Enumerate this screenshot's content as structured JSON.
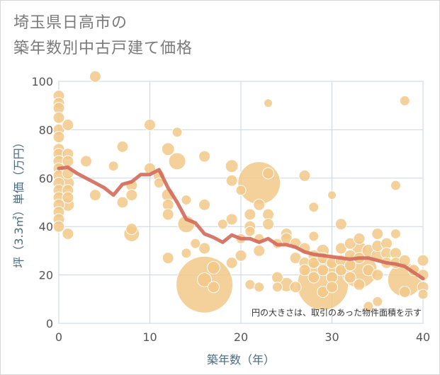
{
  "chart_data": {
    "type": "scatter",
    "title_lines": [
      "埼玉県日高市の",
      "築年数別中古戸建て価格"
    ],
    "xlabel": "築年数（年）",
    "ylabel": "坪（3.3㎡）単価（万円）",
    "xlim": [
      0,
      40
    ],
    "ylim": [
      0,
      100
    ],
    "x_ticks": [
      "0",
      "10",
      "20",
      "30",
      "40"
    ],
    "y_ticks": [
      "0",
      "20",
      "40",
      "60",
      "80",
      "100"
    ],
    "grid": true,
    "note": "円の大きさは、取引のあった物件面積を示す",
    "colors": {
      "bubble": "#f2c98a",
      "bubble_stroke": "#ffffff",
      "trend": "#d2695a",
      "grid": "#c9d5e0",
      "plot_bg": "#ffffff"
    },
    "series": [
      {
        "kind": "bubbles",
        "points": [
          {
            "x": 0,
            "y": 94,
            "s": 8
          },
          {
            "x": 0,
            "y": 91,
            "s": 8
          },
          {
            "x": 0,
            "y": 89,
            "s": 8
          },
          {
            "x": 0,
            "y": 85,
            "s": 8
          },
          {
            "x": 0,
            "y": 80,
            "s": 8
          },
          {
            "x": 0,
            "y": 77,
            "s": 8
          },
          {
            "x": 0,
            "y": 72,
            "s": 8
          },
          {
            "x": 0,
            "y": 70,
            "s": 8
          },
          {
            "x": 0,
            "y": 67,
            "s": 8
          },
          {
            "x": 0,
            "y": 64,
            "s": 8
          },
          {
            "x": 0,
            "y": 61,
            "s": 8
          },
          {
            "x": 0,
            "y": 58,
            "s": 8
          },
          {
            "x": 0,
            "y": 55,
            "s": 8
          },
          {
            "x": 0,
            "y": 52,
            "s": 8
          },
          {
            "x": 0,
            "y": 49,
            "s": 8
          },
          {
            "x": 0,
            "y": 46,
            "s": 8
          },
          {
            "x": 0,
            "y": 43,
            "s": 8
          },
          {
            "x": 0,
            "y": 40,
            "s": 8
          },
          {
            "x": 1,
            "y": 82,
            "s": 8
          },
          {
            "x": 1,
            "y": 70,
            "s": 8
          },
          {
            "x": 1,
            "y": 67,
            "s": 8
          },
          {
            "x": 1,
            "y": 62,
            "s": 8
          },
          {
            "x": 1,
            "y": 58,
            "s": 9
          },
          {
            "x": 1,
            "y": 55,
            "s": 8
          },
          {
            "x": 1,
            "y": 52,
            "s": 8
          },
          {
            "x": 1,
            "y": 49,
            "s": 9
          },
          {
            "x": 1,
            "y": 37,
            "s": 8
          },
          {
            "x": 3,
            "y": 67,
            "s": 8
          },
          {
            "x": 4,
            "y": 102,
            "s": 8
          },
          {
            "x": 4,
            "y": 53,
            "s": 8
          },
          {
            "x": 6,
            "y": 65,
            "s": 7
          },
          {
            "x": 7,
            "y": 73,
            "s": 8
          },
          {
            "x": 7,
            "y": 50,
            "s": 8
          },
          {
            "x": 8,
            "y": 57,
            "s": 8
          },
          {
            "x": 8,
            "y": 53,
            "s": 8
          },
          {
            "x": 8,
            "y": 39,
            "s": 8
          },
          {
            "x": 8,
            "y": 37,
            "s": 11
          },
          {
            "x": 10,
            "y": 82,
            "s": 8
          },
          {
            "x": 10,
            "y": 64,
            "s": 8
          },
          {
            "x": 11,
            "y": 61,
            "s": 8
          },
          {
            "x": 11,
            "y": 58,
            "s": 7
          },
          {
            "x": 12,
            "y": 72,
            "s": 9
          },
          {
            "x": 12,
            "y": 53,
            "s": 9
          },
          {
            "x": 12,
            "y": 49,
            "s": 8
          },
          {
            "x": 12,
            "y": 45,
            "s": 8
          },
          {
            "x": 12,
            "y": 27,
            "s": 8
          },
          {
            "x": 13,
            "y": 79,
            "s": 7
          },
          {
            "x": 13,
            "y": 67,
            "s": 12
          },
          {
            "x": 14,
            "y": 51,
            "s": 7
          },
          {
            "x": 14,
            "y": 41,
            "s": 12
          },
          {
            "x": 14,
            "y": 29,
            "s": 7
          },
          {
            "x": 15,
            "y": 33,
            "s": 7
          },
          {
            "x": 16,
            "y": 69,
            "s": 8
          },
          {
            "x": 16,
            "y": 49,
            "s": 8
          },
          {
            "x": 16,
            "y": 31,
            "s": 8
          },
          {
            "x": 16,
            "y": 16,
            "s": 40
          },
          {
            "x": 16,
            "y": 18,
            "s": 10
          },
          {
            "x": 17,
            "y": 23,
            "s": 9
          },
          {
            "x": 17,
            "y": 15,
            "s": 8
          },
          {
            "x": 18,
            "y": 41,
            "s": 7
          },
          {
            "x": 19,
            "y": 65,
            "s": 9
          },
          {
            "x": 19,
            "y": 59,
            "s": 8
          },
          {
            "x": 19,
            "y": 43,
            "s": 8
          },
          {
            "x": 19,
            "y": 25,
            "s": 8
          },
          {
            "x": 20,
            "y": 55,
            "s": 7
          },
          {
            "x": 20,
            "y": 35,
            "s": 7
          },
          {
            "x": 20,
            "y": 28,
            "s": 8
          },
          {
            "x": 21,
            "y": 45,
            "s": 8
          },
          {
            "x": 21,
            "y": 40,
            "s": 8
          },
          {
            "x": 21,
            "y": 38,
            "s": 7
          },
          {
            "x": 21,
            "y": 16,
            "s": 7
          },
          {
            "x": 22,
            "y": 58,
            "s": 30
          },
          {
            "x": 22,
            "y": 49,
            "s": 8
          },
          {
            "x": 22,
            "y": 35,
            "s": 7
          },
          {
            "x": 22,
            "y": 30,
            "s": 8
          },
          {
            "x": 22,
            "y": 15,
            "s": 7
          },
          {
            "x": 23,
            "y": 91,
            "s": 6
          },
          {
            "x": 23,
            "y": 62,
            "s": 8
          },
          {
            "x": 23,
            "y": 45,
            "s": 8
          },
          {
            "x": 23,
            "y": 41,
            "s": 8
          },
          {
            "x": 24,
            "y": 33,
            "s": 7
          },
          {
            "x": 24,
            "y": 19,
            "s": 8
          },
          {
            "x": 24,
            "y": 15,
            "s": 7
          },
          {
            "x": 25,
            "y": 37,
            "s": 8
          },
          {
            "x": 25,
            "y": 35,
            "s": 8
          },
          {
            "x": 25,
            "y": 16,
            "s": 10
          },
          {
            "x": 26,
            "y": 33,
            "s": 8
          },
          {
            "x": 26,
            "y": 27,
            "s": 8
          },
          {
            "x": 26,
            "y": 15,
            "s": 8
          },
          {
            "x": 27,
            "y": 61,
            "s": 8
          },
          {
            "x": 27,
            "y": 31,
            "s": 8
          },
          {
            "x": 27,
            "y": 25,
            "s": 8
          },
          {
            "x": 27,
            "y": 22,
            "s": 8
          },
          {
            "x": 28,
            "y": 48,
            "s": 7
          },
          {
            "x": 28,
            "y": 36,
            "s": 7
          },
          {
            "x": 28,
            "y": 28,
            "s": 8
          },
          {
            "x": 28,
            "y": 25,
            "s": 8
          },
          {
            "x": 28,
            "y": 19,
            "s": 8
          },
          {
            "x": 29,
            "y": 30,
            "s": 9
          },
          {
            "x": 29,
            "y": 27,
            "s": 8
          },
          {
            "x": 29,
            "y": 22,
            "s": 8
          },
          {
            "x": 29,
            "y": 16,
            "s": 36
          },
          {
            "x": 29,
            "y": 13,
            "s": 8
          },
          {
            "x": 30,
            "y": 53,
            "s": 6
          },
          {
            "x": 30,
            "y": 25,
            "s": 8
          },
          {
            "x": 30,
            "y": 19,
            "s": 8
          },
          {
            "x": 30,
            "y": 15,
            "s": 8
          },
          {
            "x": 31,
            "y": 41,
            "s": 8
          },
          {
            "x": 31,
            "y": 31,
            "s": 8
          },
          {
            "x": 31,
            "y": 26,
            "s": 8
          },
          {
            "x": 31,
            "y": 22,
            "s": 8
          },
          {
            "x": 32,
            "y": 33,
            "s": 8
          },
          {
            "x": 32,
            "y": 28,
            "s": 8
          },
          {
            "x": 32,
            "y": 24,
            "s": 8
          },
          {
            "x": 32,
            "y": 19,
            "s": 8
          },
          {
            "x": 33,
            "y": 35,
            "s": 8
          },
          {
            "x": 33,
            "y": 31,
            "s": 10
          },
          {
            "x": 33,
            "y": 27,
            "s": 8
          },
          {
            "x": 33,
            "y": 22,
            "s": 25
          },
          {
            "x": 33,
            "y": 16,
            "s": 8
          },
          {
            "x": 34,
            "y": 30,
            "s": 9
          },
          {
            "x": 34,
            "y": 22,
            "s": 8
          },
          {
            "x": 34,
            "y": 7,
            "s": 7
          },
          {
            "x": 35,
            "y": 37,
            "s": 8
          },
          {
            "x": 35,
            "y": 32,
            "s": 8
          },
          {
            "x": 35,
            "y": 28,
            "s": 9
          },
          {
            "x": 35,
            "y": 20,
            "s": 8
          },
          {
            "x": 35,
            "y": 9,
            "s": 7
          },
          {
            "x": 36,
            "y": 33,
            "s": 8
          },
          {
            "x": 36,
            "y": 29,
            "s": 8
          },
          {
            "x": 36,
            "y": 25,
            "s": 8
          },
          {
            "x": 37,
            "y": 57,
            "s": 7
          },
          {
            "x": 37,
            "y": 37,
            "s": 7
          },
          {
            "x": 37,
            "y": 29,
            "s": 8
          },
          {
            "x": 37,
            "y": 25,
            "s": 8
          },
          {
            "x": 38,
            "y": 92,
            "s": 7
          },
          {
            "x": 38,
            "y": 26,
            "s": 8
          },
          {
            "x": 38,
            "y": 18,
            "s": 24
          },
          {
            "x": 38,
            "y": 13,
            "s": 8
          },
          {
            "x": 39,
            "y": 22,
            "s": 8
          },
          {
            "x": 40,
            "y": 26,
            "s": 8
          },
          {
            "x": 40,
            "y": 15,
            "s": 8
          },
          {
            "x": 40,
            "y": 12,
            "s": 7
          },
          {
            "x": 40,
            "y": 20,
            "s": 8
          }
        ]
      },
      {
        "kind": "trend",
        "points": [
          {
            "x": 0,
            "y": 64
          },
          {
            "x": 1,
            "y": 64.5
          },
          {
            "x": 2,
            "y": 62
          },
          {
            "x": 3,
            "y": 60
          },
          {
            "x": 4,
            "y": 58
          },
          {
            "x": 5,
            "y": 56
          },
          {
            "x": 6,
            "y": 53
          },
          {
            "x": 7,
            "y": 57.5
          },
          {
            "x": 8,
            "y": 58.5
          },
          {
            "x": 9,
            "y": 61.5
          },
          {
            "x": 10,
            "y": 61.5
          },
          {
            "x": 11,
            "y": 63.5
          },
          {
            "x": 12,
            "y": 56
          },
          {
            "x": 13,
            "y": 50
          },
          {
            "x": 14,
            "y": 43
          },
          {
            "x": 15,
            "y": 41.5
          },
          {
            "x": 16,
            "y": 37
          },
          {
            "x": 17,
            "y": 35.5
          },
          {
            "x": 18,
            "y": 33.5
          },
          {
            "x": 19,
            "y": 36.5
          },
          {
            "x": 20,
            "y": 35
          },
          {
            "x": 21,
            "y": 35
          },
          {
            "x": 22,
            "y": 33.5
          },
          {
            "x": 23,
            "y": 35
          },
          {
            "x": 24,
            "y": 32.5
          },
          {
            "x": 25,
            "y": 32.5
          },
          {
            "x": 26,
            "y": 31.5
          },
          {
            "x": 27,
            "y": 29.5
          },
          {
            "x": 28,
            "y": 28.5
          },
          {
            "x": 29,
            "y": 28
          },
          {
            "x": 30,
            "y": 27.5
          },
          {
            "x": 31,
            "y": 27
          },
          {
            "x": 32,
            "y": 26.5
          },
          {
            "x": 33,
            "y": 27
          },
          {
            "x": 34,
            "y": 27
          },
          {
            "x": 35,
            "y": 26
          },
          {
            "x": 36,
            "y": 25
          },
          {
            "x": 37,
            "y": 24.5
          },
          {
            "x": 38,
            "y": 23.5
          },
          {
            "x": 39,
            "y": 21
          },
          {
            "x": 40,
            "y": 18.5
          }
        ]
      }
    ]
  }
}
